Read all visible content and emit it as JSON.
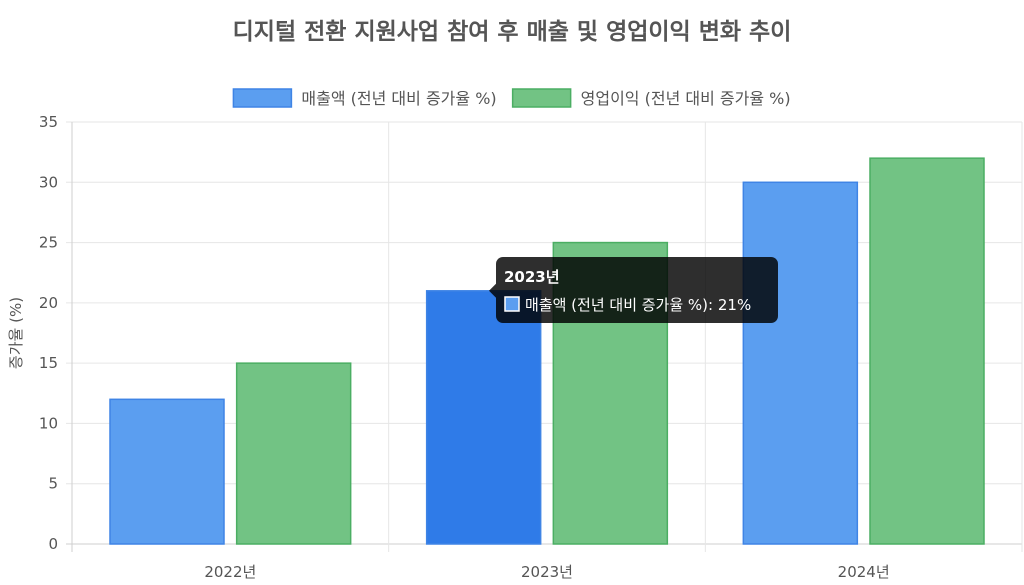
{
  "chart_data": {
    "type": "bar",
    "title": "디지털 전환 지원사업 참여 후 매출 및 영업이익 변화 추이",
    "categories": [
      "2022년",
      "2023년",
      "2024년"
    ],
    "series": [
      {
        "name": "매출액 (전년 대비 증가율 %)",
        "values": [
          12,
          21,
          30
        ],
        "color": "#5B9EF0",
        "border": "#3F84E5"
      },
      {
        "name": "영업이익 (전년 대비 증가율 %)",
        "values": [
          15,
          25,
          32
        ],
        "color": "#72C384",
        "border": "#4BAE63"
      }
    ],
    "xlabel": "",
    "ylabel": "증가율 (%)",
    "ylim": [
      0,
      35
    ],
    "yticks": [
      0,
      5,
      10,
      15,
      20,
      25,
      30,
      35
    ],
    "grid": true,
    "legend": "top-center",
    "tooltip": {
      "title": "2023년",
      "label": "매출액 (전년 대비 증가율 %): 21%",
      "category_index": 1,
      "series_index": 0,
      "active_color": "#2F7BE8"
    }
  }
}
